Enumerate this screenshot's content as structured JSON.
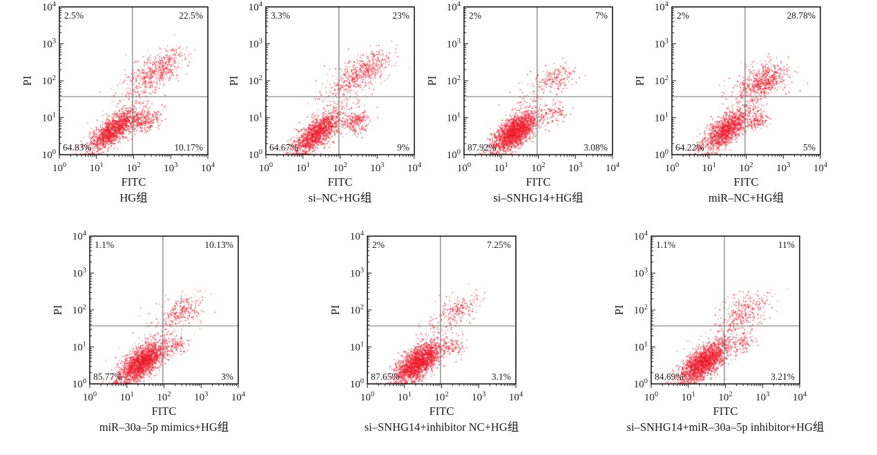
{
  "figure": {
    "description": "Flow cytometry apoptosis dot plots (Annexin V-FITC / PI) for seven treatment groups",
    "background_color": "#ffffff"
  },
  "colors": {
    "dot": "#ee1b2b",
    "frame": "#1a1a1a",
    "gate_line": "#6f6f6f",
    "text": "#1a1a1a"
  },
  "axis": {
    "x_label": "FITC",
    "y_label": "PI",
    "scale": "log",
    "xlim": [
      1,
      10000
    ],
    "ylim": [
      1,
      10000
    ],
    "ticks": [
      {
        "b": "10",
        "e": "0"
      },
      {
        "b": "10",
        "e": "1"
      },
      {
        "b": "10",
        "e": "2"
      },
      {
        "b": "10",
        "e": "3"
      },
      {
        "b": "10",
        "e": "4"
      }
    ]
  },
  "chart_data": [
    {
      "type": "scatter",
      "title": "HG组",
      "xlabel": "FITC",
      "ylabel": "PI",
      "quadrants": {
        "upper_left": "2.5%",
        "upper_right": "22.5%",
        "lower_left": "64.83%",
        "lower_right": "10.17%"
      },
      "gate": {
        "x_log": 1.97,
        "y_log": 1.57
      },
      "clusters": [
        {
          "name": "live",
          "n": 1500,
          "c": [
            1.42,
            0.66
          ],
          "s": [
            0.4,
            0.15
          ],
          "a": 40
        },
        {
          "name": "early-apoptotic",
          "n": 270,
          "c": [
            2.33,
            0.93
          ],
          "s": [
            0.24,
            0.13
          ],
          "a": 25
        },
        {
          "name": "late-apoptotic",
          "n": 520,
          "c": [
            2.62,
            2.28
          ],
          "s": [
            0.43,
            0.2
          ],
          "a": 33
        },
        {
          "name": "bridge",
          "n": 120,
          "c": [
            1.95,
            1.58
          ],
          "s": [
            0.45,
            0.3
          ],
          "a": 55
        }
      ]
    },
    {
      "type": "scatter",
      "title": "si–NC+HG组",
      "xlabel": "FITC",
      "ylabel": "PI",
      "quadrants": {
        "upper_left": "3.3%",
        "upper_right": "23%",
        "lower_left": "64.67%",
        "lower_right": "9%"
      },
      "gate": {
        "x_log": 1.97,
        "y_log": 1.57
      },
      "clusters": [
        {
          "name": "live",
          "n": 1500,
          "c": [
            1.38,
            0.6
          ],
          "s": [
            0.4,
            0.16
          ],
          "a": 42
        },
        {
          "name": "early-apoptotic",
          "n": 240,
          "c": [
            2.4,
            0.88
          ],
          "s": [
            0.22,
            0.14
          ],
          "a": 20
        },
        {
          "name": "late-apoptotic",
          "n": 540,
          "c": [
            2.58,
            2.22
          ],
          "s": [
            0.45,
            0.2
          ],
          "a": 33
        },
        {
          "name": "bridge",
          "n": 140,
          "c": [
            1.92,
            1.5
          ],
          "s": [
            0.45,
            0.32
          ],
          "a": 55
        }
      ]
    },
    {
      "type": "scatter",
      "title": "si–SNHG14+HG组",
      "xlabel": "FITC",
      "ylabel": "PI",
      "quadrants": {
        "upper_left": "2%",
        "upper_right": "7%",
        "lower_left": "87.92%",
        "lower_right": "3.08%"
      },
      "gate": {
        "x_log": 1.97,
        "y_log": 1.57
      },
      "clusters": [
        {
          "name": "live",
          "n": 2200,
          "c": [
            1.35,
            0.62
          ],
          "s": [
            0.37,
            0.17
          ],
          "a": 40
        },
        {
          "name": "early-apoptotic",
          "n": 100,
          "c": [
            2.38,
            1.1
          ],
          "s": [
            0.2,
            0.13
          ],
          "a": 25
        },
        {
          "name": "late-apoptotic",
          "n": 190,
          "c": [
            2.47,
            2.1
          ],
          "s": [
            0.3,
            0.17
          ],
          "a": 30
        },
        {
          "name": "bridge",
          "n": 80,
          "c": [
            1.85,
            1.5
          ],
          "s": [
            0.4,
            0.28
          ],
          "a": 55
        }
      ]
    },
    {
      "type": "scatter",
      "title": "miR–NC+HG组",
      "xlabel": "FITC",
      "ylabel": "PI",
      "quadrants": {
        "upper_left": "2%",
        "upper_right": "28.78%",
        "lower_left": "64.22%",
        "lower_right": "5%"
      },
      "gate": {
        "x_log": 1.97,
        "y_log": 1.57
      },
      "clusters": [
        {
          "name": "live",
          "n": 1450,
          "c": [
            1.45,
            0.68
          ],
          "s": [
            0.4,
            0.16
          ],
          "a": 40
        },
        {
          "name": "early-apoptotic",
          "n": 130,
          "c": [
            2.28,
            0.93
          ],
          "s": [
            0.16,
            0.11
          ],
          "a": 20
        },
        {
          "name": "late-apoptotic",
          "n": 660,
          "c": [
            2.45,
            1.98
          ],
          "s": [
            0.36,
            0.22
          ],
          "a": 28
        },
        {
          "name": "bridge",
          "n": 110,
          "c": [
            1.92,
            1.52
          ],
          "s": [
            0.42,
            0.3
          ],
          "a": 55
        }
      ]
    },
    {
      "type": "scatter",
      "title": "miR–30a–5p mimics+HG组",
      "xlabel": "FITC",
      "ylabel": "PI",
      "quadrants": {
        "upper_left": "1.1%",
        "upper_right": "10.13%",
        "lower_left": "85.77%",
        "lower_right": "3%"
      },
      "gate": {
        "x_log": 1.97,
        "y_log": 1.57
      },
      "clusters": [
        {
          "name": "live",
          "n": 2200,
          "c": [
            1.4,
            0.6
          ],
          "s": [
            0.38,
            0.17
          ],
          "a": 40
        },
        {
          "name": "early-apoptotic",
          "n": 90,
          "c": [
            2.35,
            1.02
          ],
          "s": [
            0.18,
            0.12
          ],
          "a": 25
        },
        {
          "name": "late-apoptotic",
          "n": 250,
          "c": [
            2.5,
            2.02
          ],
          "s": [
            0.3,
            0.18
          ],
          "a": 30
        },
        {
          "name": "bridge",
          "n": 90,
          "c": [
            2.0,
            1.52
          ],
          "s": [
            0.4,
            0.28
          ],
          "a": 55
        }
      ]
    },
    {
      "type": "scatter",
      "title": "si–SNHG14+inhibitor NC+HG组",
      "xlabel": "FITC",
      "ylabel": "PI",
      "quadrants": {
        "upper_left": "2%",
        "upper_right": "7.25%",
        "lower_left": "87.65%",
        "lower_right": "3.1%"
      },
      "gate": {
        "x_log": 1.97,
        "y_log": 1.57
      },
      "clusters": [
        {
          "name": "live",
          "n": 2200,
          "c": [
            1.35,
            0.58
          ],
          "s": [
            0.37,
            0.17
          ],
          "a": 40
        },
        {
          "name": "early-apoptotic",
          "n": 95,
          "c": [
            2.36,
            1.0
          ],
          "s": [
            0.18,
            0.12
          ],
          "a": 25
        },
        {
          "name": "late-apoptotic",
          "n": 200,
          "c": [
            2.45,
            2.02
          ],
          "s": [
            0.32,
            0.18
          ],
          "a": 30
        },
        {
          "name": "bridge",
          "n": 75,
          "c": [
            1.88,
            1.48
          ],
          "s": [
            0.4,
            0.28
          ],
          "a": 55
        }
      ]
    },
    {
      "type": "scatter",
      "title": "si–SNHG14+miR–30a–5p inhibitor+HG组",
      "xlabel": "FITC",
      "ylabel": "PI",
      "quadrants": {
        "upper_left": "1.1%",
        "upper_right": "11%",
        "lower_left": "84.69%",
        "lower_right": "3.21%"
      },
      "gate": {
        "x_log": 1.97,
        "y_log": 1.57
      },
      "clusters": [
        {
          "name": "live",
          "n": 2100,
          "c": [
            1.4,
            0.6
          ],
          "s": [
            0.39,
            0.17
          ],
          "a": 40
        },
        {
          "name": "early-apoptotic",
          "n": 110,
          "c": [
            2.42,
            1.12
          ],
          "s": [
            0.22,
            0.14
          ],
          "a": 25
        },
        {
          "name": "late-apoptotic",
          "n": 290,
          "c": [
            2.52,
            1.98
          ],
          "s": [
            0.36,
            0.21
          ],
          "a": 30
        },
        {
          "name": "bridge",
          "n": 100,
          "c": [
            2.05,
            1.5
          ],
          "s": [
            0.42,
            0.3
          ],
          "a": 55
        }
      ]
    }
  ]
}
